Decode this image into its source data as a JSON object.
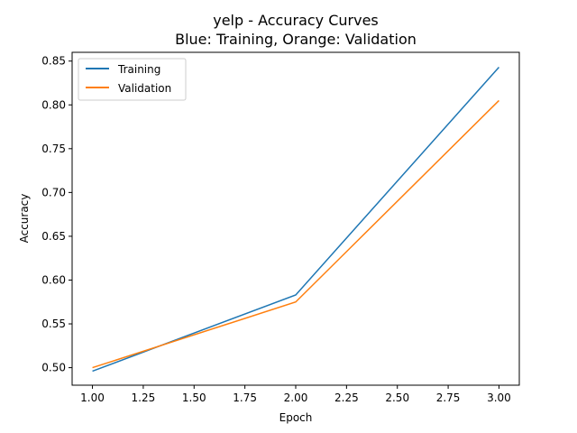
{
  "chart_data": {
    "type": "line",
    "title": "yelp - Accuracy Curves",
    "subtitle": "Blue: Training, Orange: Validation",
    "xlabel": "Epoch",
    "ylabel": "Accuracy",
    "xlim": [
      0.9,
      3.1
    ],
    "ylim": [
      0.48,
      0.86
    ],
    "x_ticks": [
      1.0,
      1.25,
      1.5,
      1.75,
      2.0,
      2.25,
      2.5,
      2.75,
      3.0
    ],
    "x_tick_labels": [
      "1.00",
      "1.25",
      "1.50",
      "1.75",
      "2.00",
      "2.25",
      "2.50",
      "2.75",
      "3.00"
    ],
    "y_ticks": [
      0.5,
      0.55,
      0.6,
      0.65,
      0.7,
      0.75,
      0.8,
      0.85
    ],
    "y_tick_labels": [
      "0.50",
      "0.55",
      "0.60",
      "0.65",
      "0.70",
      "0.75",
      "0.80",
      "0.85"
    ],
    "grid": false,
    "legend_position": "top-left",
    "x": [
      1,
      2,
      3
    ],
    "series": [
      {
        "name": "Training",
        "values": [
          0.496,
          0.583,
          0.843
        ],
        "color": "#1f77b4"
      },
      {
        "name": "Validation",
        "values": [
          0.5,
          0.575,
          0.805
        ],
        "color": "#ff7f0e"
      }
    ]
  }
}
